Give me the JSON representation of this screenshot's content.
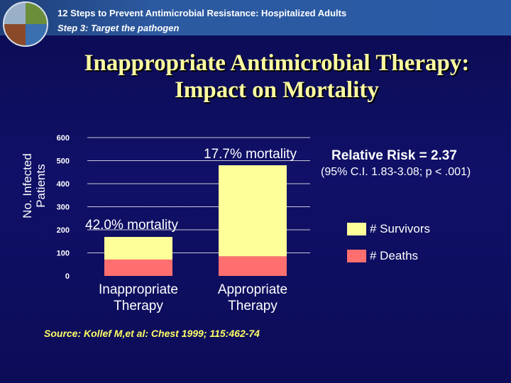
{
  "header": {
    "title": "12 Steps to Prevent Antimicrobial Resistance: Hospitalized Adults",
    "subtitle": "Step 3: Target the pathogen"
  },
  "slide_title": {
    "line1": "Inappropriate Antimicrobial Therapy:",
    "line2": "Impact on Mortality"
  },
  "source": "Source: Kollef M,et al: Chest 1999; 115:462-74",
  "colors": {
    "survivors": "#ffff99",
    "deaths": "#ff6f6f",
    "text": "#ffffff",
    "title": "#ffffa0",
    "source": "#ffff66"
  },
  "chart_data": {
    "type": "bar",
    "stacked": true,
    "ylabel_line1": "No. Infected",
    "ylabel_line2": "Patients",
    "ylim": [
      0,
      600
    ],
    "yticks": [
      0,
      100,
      200,
      300,
      400,
      500,
      600
    ],
    "categories": [
      {
        "line1": "Inappropriate",
        "line2": "Therapy"
      },
      {
        "line1": "Appropriate",
        "line2": "Therapy"
      }
    ],
    "series": [
      {
        "name": "# Deaths",
        "key": "deaths",
        "values": [
          71,
          85
        ]
      },
      {
        "name": "# Survivors",
        "key": "survivors",
        "values": [
          98,
          395
        ]
      }
    ],
    "annotations": {
      "mortality_inappropriate": "42.0% mortality",
      "mortality_appropriate": "17.7% mortality",
      "relative_risk": "Relative Risk = 2.37",
      "confidence_interval": "(95% C.I. 1.83-3.08; p < .001)"
    },
    "legend": [
      {
        "label": "# Survivors",
        "key": "survivors"
      },
      {
        "label": "# Deaths",
        "key": "deaths"
      }
    ]
  }
}
